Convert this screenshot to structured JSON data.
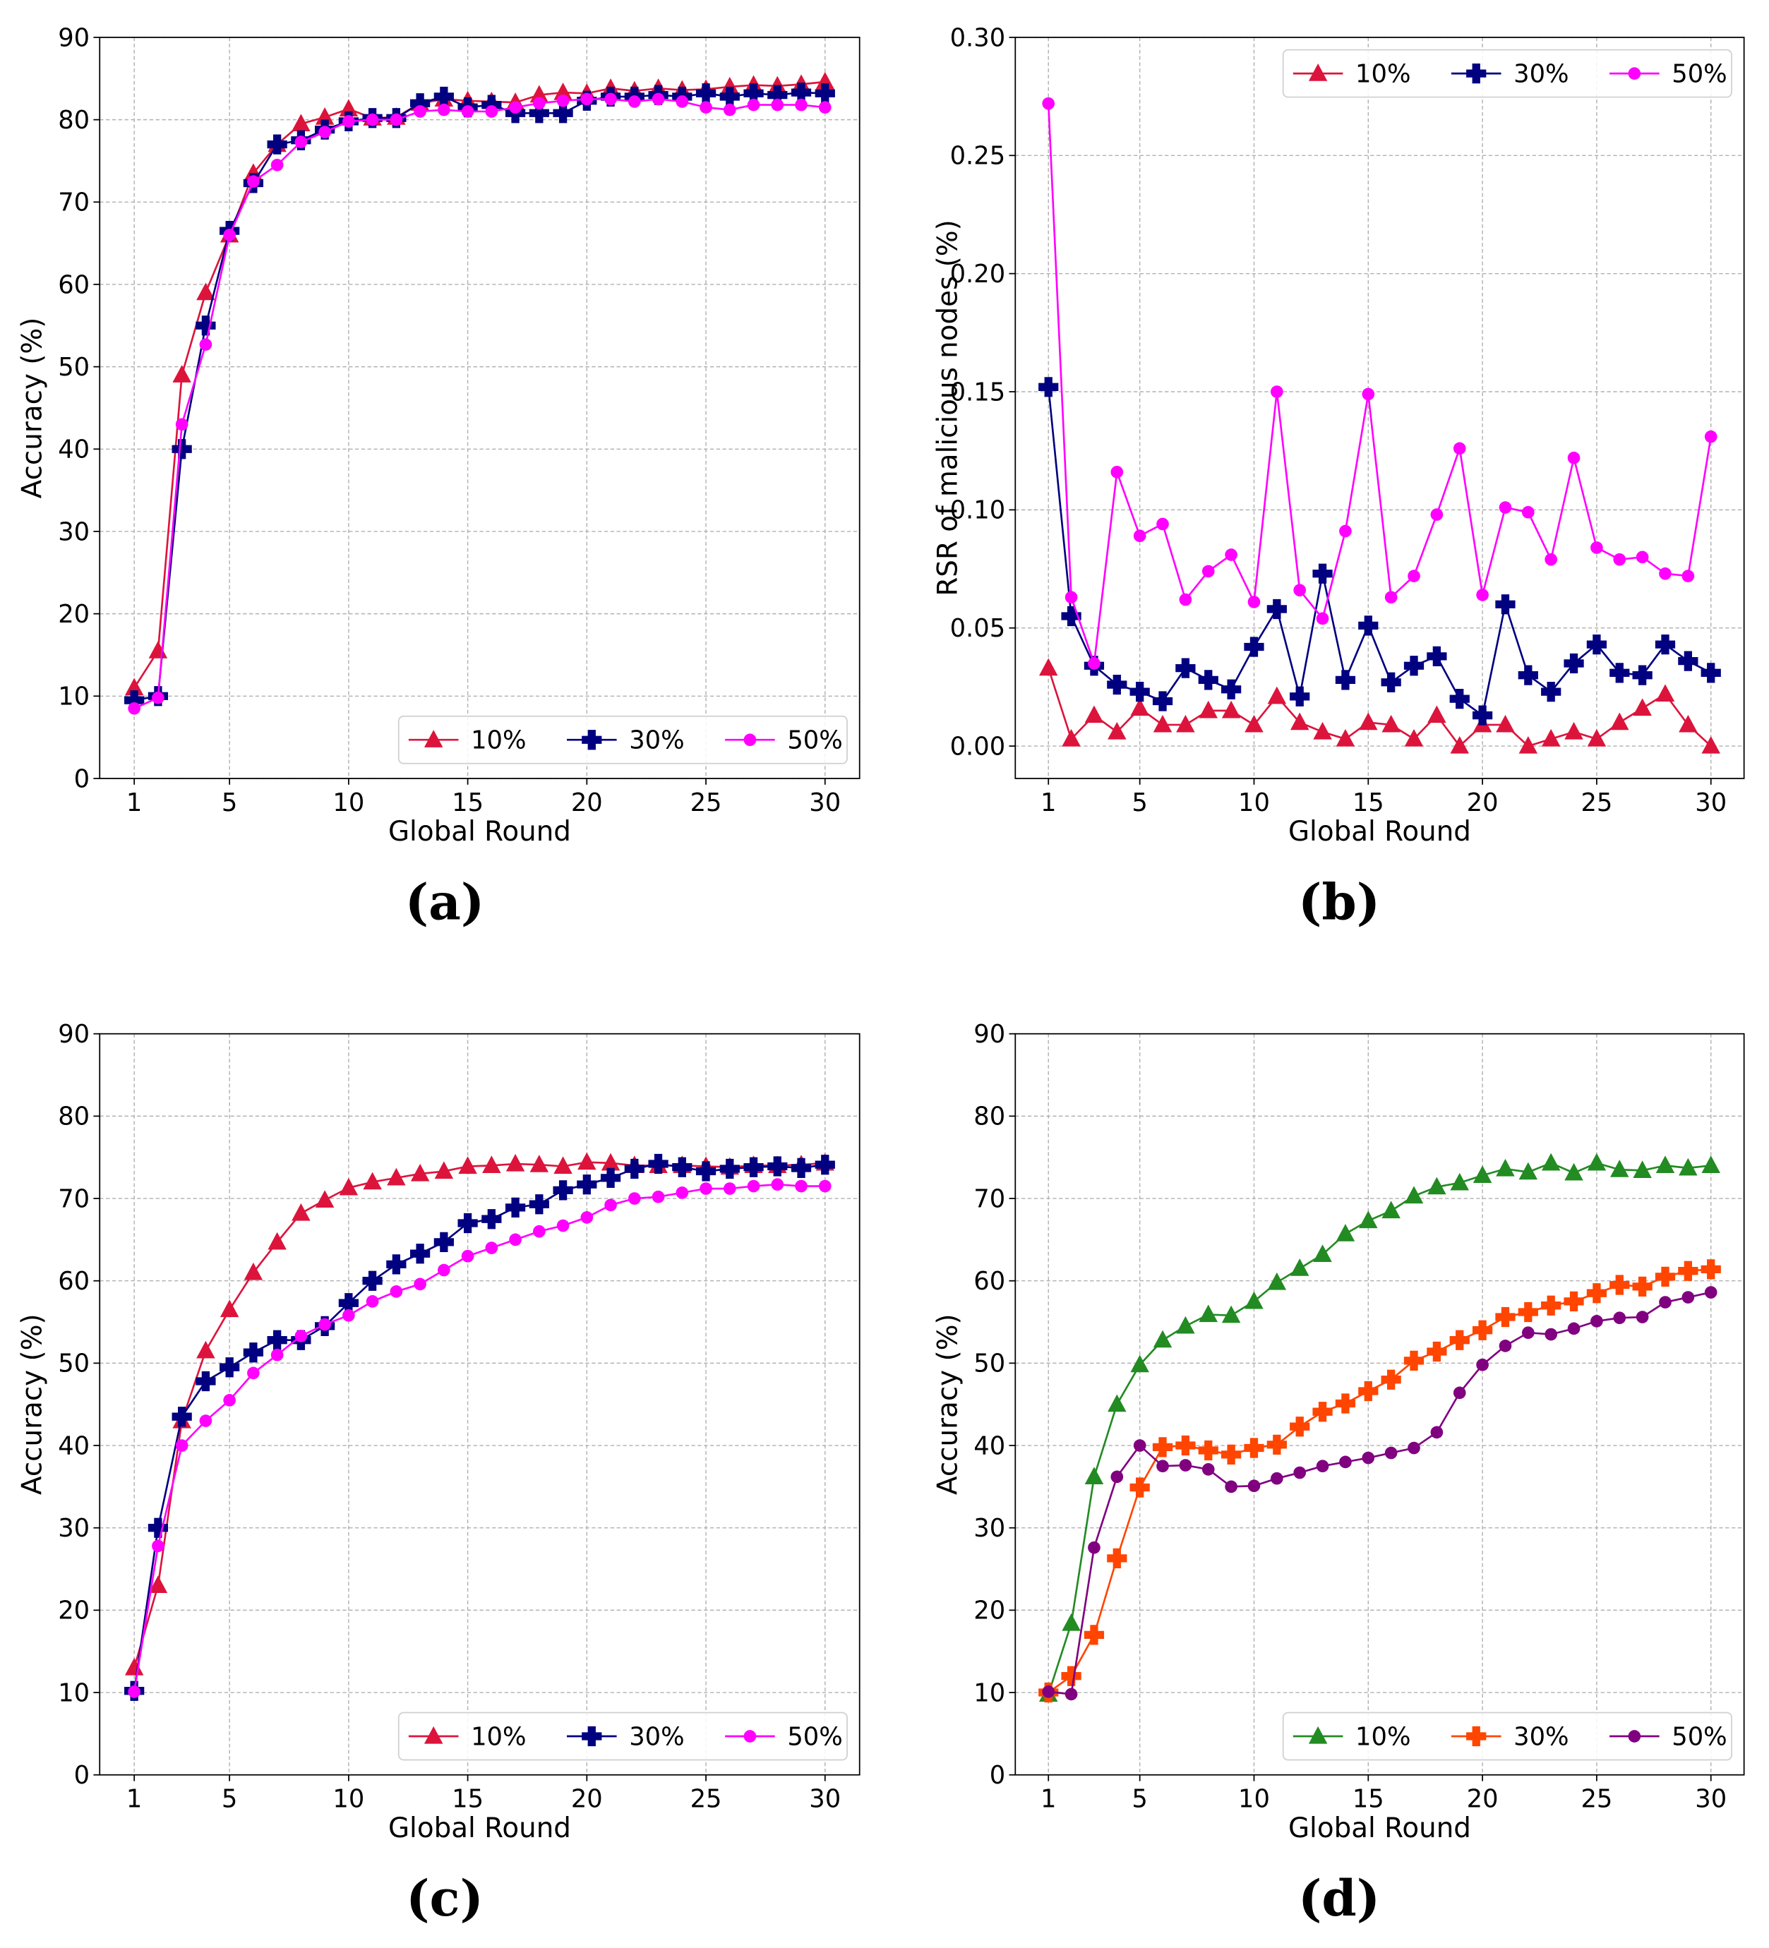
{
  "chart_data": [
    {
      "id": "a",
      "panel_label": "(a)",
      "type": "line",
      "xlabel": "Global Round",
      "ylabel": "Accuracy (%)",
      "xticks": [
        1,
        5,
        10,
        15,
        20,
        25,
        30
      ],
      "ylim": [
        0,
        90
      ],
      "yticks": [
        0,
        10,
        20,
        30,
        40,
        50,
        60,
        70,
        80,
        90
      ],
      "ytick_labels": [
        "0",
        "10",
        "20",
        "30",
        "40",
        "50",
        "60",
        "70",
        "80",
        "90"
      ],
      "legend_position": "lower-right",
      "grid": true,
      "x": [
        1,
        2,
        3,
        4,
        5,
        6,
        7,
        8,
        9,
        10,
        11,
        12,
        13,
        14,
        15,
        16,
        17,
        18,
        19,
        20,
        21,
        22,
        23,
        24,
        25,
        26,
        27,
        28,
        29,
        30
      ],
      "series": [
        {
          "name": "10%",
          "marker": "triangle",
          "color": "#dc143c",
          "values": [
            11,
            15.5,
            49,
            59,
            66,
            73.5,
            77,
            79.5,
            80.3,
            81.3,
            80.2,
            80.3,
            82,
            82.5,
            82.3,
            82.2,
            82.1,
            83,
            83.3,
            83.2,
            83.8,
            83.5,
            83.8,
            83.6,
            83.7,
            84,
            84.2,
            84.1,
            84.3,
            84.6
          ]
        },
        {
          "name": "30%",
          "marker": "plus",
          "color": "#000080",
          "values": [
            9.5,
            10,
            40,
            55,
            66.5,
            72.3,
            77,
            77.5,
            78.8,
            79.8,
            80.2,
            80.2,
            82,
            82.8,
            81.5,
            81.8,
            80.8,
            80.8,
            80.8,
            82.3,
            82.8,
            82.8,
            83,
            82.8,
            83.2,
            82.8,
            83.2,
            83,
            83.3,
            83.2
          ]
        },
        {
          "name": "50%",
          "marker": "circle",
          "color": "#ff00ff",
          "values": [
            8.5,
            9.8,
            43,
            52.7,
            66,
            72.5,
            74.5,
            77.3,
            78.5,
            79.8,
            80,
            80,
            81,
            81.2,
            81,
            81,
            81.5,
            82,
            82.3,
            82.5,
            82.5,
            82.2,
            82.5,
            82.2,
            81.5,
            81.2,
            81.8,
            81.8,
            81.8,
            81.5
          ]
        }
      ]
    },
    {
      "id": "b",
      "panel_label": "(b)",
      "type": "line",
      "xlabel": "Global Round",
      "ylabel": "RSR of malicious nodes (%)",
      "xticks": [
        1,
        5,
        10,
        15,
        20,
        25,
        30
      ],
      "ylim": [
        -0.0137,
        0.3
      ],
      "yticks": [
        0,
        0.05,
        0.1,
        0.15,
        0.2,
        0.25,
        0.3
      ],
      "ytick_labels": [
        "0.00",
        "0.05",
        "0.10",
        "0.15",
        "0.20",
        "0.25",
        "0.30"
      ],
      "legend_position": "upper-right",
      "grid": true,
      "x": [
        1,
        2,
        3,
        4,
        5,
        6,
        7,
        8,
        9,
        10,
        11,
        12,
        13,
        14,
        15,
        16,
        17,
        18,
        19,
        20,
        21,
        22,
        23,
        24,
        25,
        26,
        27,
        28,
        29,
        30
      ],
      "series": [
        {
          "name": "10%",
          "marker": "triangle",
          "color": "#dc143c",
          "values": [
            0.033,
            0.003,
            0.013,
            0.006,
            0.016,
            0.009,
            0.009,
            0.015,
            0.015,
            0.009,
            0.021,
            0.01,
            0.006,
            0.003,
            0.01,
            0.009,
            0.003,
            0.013,
            0,
            0.009,
            0.009,
            0,
            0.003,
            0.006,
            0.003,
            0.01,
            0.016,
            0.022,
            0.009,
            0
          ]
        },
        {
          "name": "30%",
          "marker": "plus",
          "color": "#000080",
          "values": [
            0.152,
            0.055,
            0.034,
            0.026,
            0.023,
            0.019,
            0.033,
            0.028,
            0.024,
            0.042,
            0.058,
            0.021,
            0.073,
            0.028,
            0.051,
            0.027,
            0.034,
            0.038,
            0.02,
            0.013,
            0.06,
            0.03,
            0.023,
            0.035,
            0.043,
            0.031,
            0.03,
            0.043,
            0.036,
            0.031
          ]
        },
        {
          "name": "50%",
          "marker": "circle",
          "color": "#ff00ff",
          "values": [
            0.272,
            0.063,
            0.035,
            0.116,
            0.089,
            0.094,
            0.062,
            0.074,
            0.081,
            0.061,
            0.15,
            0.066,
            0.054,
            0.091,
            0.149,
            0.063,
            0.072,
            0.098,
            0.126,
            0.064,
            0.101,
            0.099,
            0.079,
            0.122,
            0.084,
            0.079,
            0.08,
            0.073,
            0.072,
            0.131
          ]
        }
      ]
    },
    {
      "id": "c",
      "panel_label": "(c)",
      "type": "line",
      "xlabel": "Global Round",
      "ylabel": "Accuracy (%)",
      "xticks": [
        1,
        5,
        10,
        15,
        20,
        25,
        30
      ],
      "ylim": [
        0,
        90
      ],
      "yticks": [
        0,
        10,
        20,
        30,
        40,
        50,
        60,
        70,
        80,
        90
      ],
      "ytick_labels": [
        "0",
        "10",
        "20",
        "30",
        "40",
        "50",
        "60",
        "70",
        "80",
        "90"
      ],
      "legend_position": "lower-right",
      "grid": true,
      "x": [
        1,
        2,
        3,
        4,
        5,
        6,
        7,
        8,
        9,
        10,
        11,
        12,
        13,
        14,
        15,
        16,
        17,
        18,
        19,
        20,
        21,
        22,
        23,
        24,
        25,
        26,
        27,
        28,
        29,
        30
      ],
      "series": [
        {
          "name": "10%",
          "marker": "triangle",
          "color": "#dc143c",
          "values": [
            13,
            23,
            43,
            51.5,
            56.5,
            61,
            64.7,
            68.2,
            69.8,
            71.3,
            72,
            72.5,
            73,
            73.3,
            73.9,
            74,
            74.2,
            74.1,
            73.9,
            74.4,
            74.3,
            74,
            74,
            74,
            73.9,
            73.8,
            74,
            74,
            74.1,
            74.3
          ]
        },
        {
          "name": "30%",
          "marker": "plus",
          "color": "#000080",
          "values": [
            10.2,
            30,
            43.5,
            47.8,
            49.5,
            51.3,
            52.8,
            52.8,
            54.5,
            57.3,
            60,
            62,
            63.3,
            64.7,
            67,
            67.5,
            68.9,
            69.3,
            71,
            71.7,
            72.5,
            73.6,
            74.2,
            73.8,
            73.3,
            73.6,
            73.8,
            73.9,
            73.7,
            74.1
          ]
        },
        {
          "name": "50%",
          "marker": "circle",
          "color": "#ff00ff",
          "values": [
            10.1,
            27.8,
            40,
            43,
            45.5,
            48.8,
            51,
            53.3,
            54.7,
            55.8,
            57.5,
            58.7,
            59.6,
            61.3,
            63,
            64,
            65,
            66,
            66.7,
            67.7,
            69.2,
            70,
            70.2,
            70.7,
            71.2,
            71.2,
            71.5,
            71.7,
            71.5,
            71.5
          ]
        }
      ]
    },
    {
      "id": "d",
      "panel_label": "(d)",
      "type": "line",
      "xlabel": "Global Round",
      "ylabel": "Accuracy (%)",
      "xticks": [
        1,
        5,
        10,
        15,
        20,
        25,
        30
      ],
      "ylim": [
        0,
        90
      ],
      "yticks": [
        0,
        10,
        20,
        30,
        40,
        50,
        60,
        70,
        80,
        90
      ],
      "ytick_labels": [
        "0",
        "10",
        "20",
        "30",
        "40",
        "50",
        "60",
        "70",
        "80",
        "90"
      ],
      "legend_position": "lower-right",
      "grid": true,
      "x": [
        1,
        2,
        3,
        4,
        5,
        6,
        7,
        8,
        9,
        10,
        11,
        12,
        13,
        14,
        15,
        16,
        17,
        18,
        19,
        20,
        21,
        22,
        23,
        24,
        25,
        26,
        27,
        28,
        29,
        30
      ],
      "series": [
        {
          "name": "10%",
          "marker": "triangle",
          "color": "#228b22",
          "values": [
            9.8,
            18.4,
            36.2,
            45,
            49.8,
            52.8,
            54.5,
            55.9,
            55.8,
            57.5,
            59.8,
            61.5,
            63.2,
            65.7,
            67.3,
            68.5,
            70.3,
            71.4,
            71.9,
            72.8,
            73.6,
            73.2,
            74.3,
            73.1,
            74.3,
            73.5,
            73.4,
            74,
            73.7,
            74
          ]
        },
        {
          "name": "30%",
          "marker": "plus",
          "color": "#ff4500",
          "values": [
            10,
            12,
            17,
            26.3,
            34.9,
            39.8,
            40,
            39.4,
            38.9,
            39.7,
            40.1,
            42.3,
            44.1,
            45.1,
            46.6,
            48,
            50.3,
            51.4,
            52.8,
            54,
            55.6,
            56.2,
            57,
            57.5,
            58.5,
            59.5,
            59.3,
            60.5,
            61.2,
            61.4
          ]
        },
        {
          "name": "50%",
          "marker": "circle",
          "color": "#800080",
          "values": [
            10.1,
            9.8,
            27.6,
            36.2,
            40,
            37.5,
            37.6,
            37.1,
            35,
            35.1,
            36,
            36.7,
            37.5,
            38,
            38.5,
            39.1,
            39.7,
            41.6,
            46.4,
            49.8,
            52.1,
            53.7,
            53.5,
            54.2,
            55.1,
            55.5,
            55.6,
            57.4,
            58,
            58.6
          ]
        }
      ]
    }
  ]
}
